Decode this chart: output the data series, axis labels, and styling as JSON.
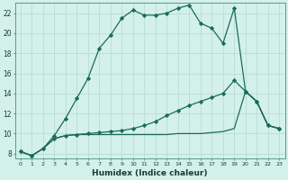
{
  "xlabel": "Humidex (Indice chaleur)",
  "bg_color": "#d4f0ea",
  "grid_color": "#b8ddd6",
  "line_color": "#1a6b5a",
  "xlim": [
    -0.5,
    23.5
  ],
  "ylim": [
    7.5,
    23.0
  ],
  "yticks": [
    8,
    10,
    12,
    14,
    16,
    18,
    20,
    22
  ],
  "xticks": [
    0,
    1,
    2,
    3,
    4,
    5,
    6,
    7,
    8,
    9,
    10,
    11,
    12,
    13,
    14,
    15,
    16,
    17,
    18,
    19,
    20,
    21,
    22,
    23
  ],
  "series1_x": [
    0,
    1,
    2,
    3,
    4,
    5,
    6,
    7,
    8,
    9,
    10,
    11,
    12,
    13,
    14,
    15,
    16,
    17,
    18,
    19,
    20,
    21,
    22,
    23
  ],
  "series1_y": [
    8.2,
    7.8,
    8.5,
    9.8,
    11.5,
    13.5,
    15.5,
    18.5,
    19.8,
    21.5,
    22.3,
    21.8,
    21.8,
    22.0,
    22.5,
    22.8,
    21.0,
    20.5,
    19.0,
    22.5,
    14.2,
    13.2,
    10.8,
    10.5
  ],
  "series2_x": [
    0,
    1,
    2,
    3,
    4,
    5,
    6,
    7,
    8,
    9,
    10,
    11,
    12,
    13,
    14,
    15,
    16,
    17,
    18,
    19,
    20,
    21,
    22,
    23
  ],
  "series2_y": [
    8.2,
    7.8,
    8.5,
    9.5,
    9.8,
    9.9,
    10.0,
    10.1,
    10.2,
    10.3,
    10.5,
    10.8,
    11.2,
    11.8,
    12.3,
    12.8,
    13.2,
    13.6,
    14.0,
    15.3,
    14.2,
    13.2,
    10.8,
    10.5
  ],
  "series3_x": [
    0,
    1,
    2,
    3,
    4,
    5,
    6,
    7,
    8,
    9,
    10,
    11,
    12,
    13,
    14,
    15,
    16,
    17,
    18,
    19,
    20,
    21,
    22,
    23
  ],
  "series3_y": [
    8.2,
    7.8,
    8.5,
    9.5,
    9.8,
    9.9,
    9.9,
    9.9,
    9.9,
    9.9,
    9.9,
    9.9,
    9.9,
    9.9,
    10.0,
    10.0,
    10.0,
    10.1,
    10.2,
    10.5,
    14.2,
    13.2,
    10.8,
    10.5
  ]
}
